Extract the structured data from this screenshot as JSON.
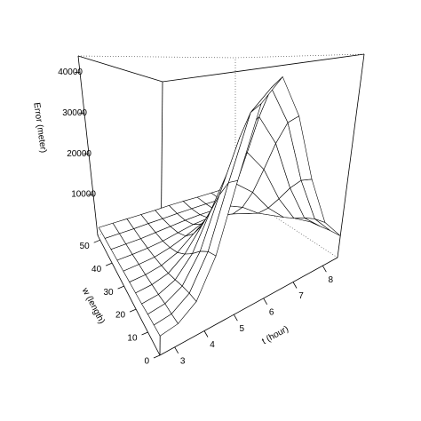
{
  "chart_data": {
    "type": "surface",
    "xlabel": "t (hour)",
    "ylabel": "w (length)",
    "zlabel": "Error (meter)",
    "x": [
      2.5,
      3.1,
      3.7,
      4.3,
      4.9,
      5.5,
      6.1,
      6.7,
      7.3,
      7.9,
      8.5
    ],
    "y": [
      0,
      5,
      10,
      15,
      20,
      25,
      30,
      35,
      40,
      45,
      50
    ],
    "z": [
      [
        3100,
        3600,
        5800,
        12200,
        24300,
        37400,
        41800,
        33500,
        19800,
        9400,
        4700
      ],
      [
        3100,
        3500,
        5600,
        11600,
        23000,
        35300,
        39400,
        31700,
        18700,
        9000,
        4600
      ],
      [
        3100,
        3500,
        5200,
        10200,
        19600,
        29800,
        33200,
        26800,
        16100,
        8000,
        4300
      ],
      [
        3000,
        3300,
        4600,
        8200,
        15100,
        22600,
        25100,
        20400,
        12600,
        6600,
        4000
      ],
      [
        3000,
        3200,
        4000,
        6400,
        10800,
        15700,
        17300,
        14200,
        9200,
        5400,
        3600
      ],
      [
        3000,
        3100,
        3600,
        4900,
        7500,
        10200,
        11100,
        9400,
        6500,
        4300,
        3400
      ],
      [
        3000,
        3100,
        3300,
        4000,
        5200,
        6600,
        7100,
        6200,
        4800,
        3700,
        3200
      ],
      [
        3000,
        3000,
        3100,
        3400,
        4000,
        4600,
        4800,
        4400,
        3800,
        3300,
        3100
      ],
      [
        3000,
        3000,
        3000,
        3200,
        3400,
        3600,
        3700,
        3600,
        3300,
        3100,
        3000
      ],
      [
        3000,
        3000,
        3000,
        3100,
        3100,
        3200,
        3200,
        3200,
        3100,
        3000,
        3000
      ],
      [
        3000,
        3000,
        3000,
        3000,
        3000,
        3100,
        3100,
        3000,
        3000,
        3000,
        3000
      ]
    ],
    "xlim": [
      2.5,
      8.5
    ],
    "ylim": [
      0,
      52
    ],
    "zlim": [
      0,
      44000
    ],
    "xticks": [
      3,
      4,
      5,
      6,
      7,
      8
    ],
    "yticks": [
      0,
      10,
      20,
      30,
      40,
      50
    ],
    "zticks": [
      10000,
      20000,
      30000,
      40000
    ],
    "color": "#ffffff"
  }
}
